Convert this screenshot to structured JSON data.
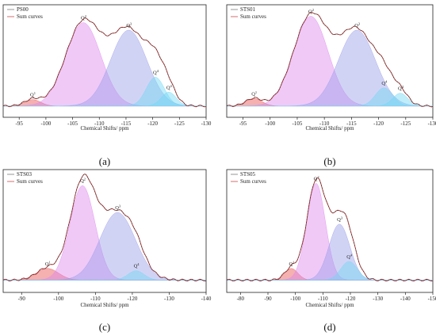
{
  "colors": {
    "q1": "#e8504f",
    "q2": "#dd88ee",
    "q3": "#9a9ee8",
    "q4": "#70d8f5",
    "sum": "#c0302e",
    "fit": "#3a3a3a"
  },
  "chart_data": [
    {
      "type": "area",
      "panel_label": "(a)",
      "xlabel": "Chemical Shifts/ ppm",
      "xlim": [
        -92,
        -130
      ],
      "ylim": [
        0,
        1
      ],
      "x_ticks": [
        -95,
        -100,
        -105,
        -110,
        -115,
        -120,
        -125,
        -130
      ],
      "legend": [
        "PS00",
        "Sum curves"
      ],
      "legend_position": "top-left",
      "baseline": 0.1,
      "series": [
        {
          "name": "Q1",
          "label": "Q",
          "sup": "1",
          "center": -97.5,
          "height": 0.06,
          "width": 1.5,
          "color": "q1"
        },
        {
          "name": "Q2",
          "label": "Q",
          "sup": "2",
          "center": -107.0,
          "height": 0.78,
          "width": 3.3,
          "color": "q2"
        },
        {
          "name": "Q3",
          "label": "Q",
          "sup": "3",
          "center": -115.5,
          "height": 0.71,
          "width": 3.4,
          "color": "q3"
        },
        {
          "name": "Q4a",
          "label": "Q",
          "sup": "4",
          "center": -120.5,
          "height": 0.27,
          "width": 1.7,
          "color": "q4"
        },
        {
          "name": "Q4b",
          "label": "Q",
          "sup": "4",
          "center": -123.0,
          "height": 0.13,
          "width": 1.4,
          "color": "q4"
        }
      ]
    },
    {
      "type": "area",
      "panel_label": "(b)",
      "xlabel": "Chemical Shifts/ ppm",
      "xlim": [
        -92,
        -130
      ],
      "ylim": [
        0,
        1
      ],
      "x_ticks": [
        -95,
        -100,
        -105,
        -110,
        -115,
        -120,
        -125,
        -130
      ],
      "legend": [
        "STS01",
        "Sum curves"
      ],
      "legend_position": "top-left",
      "baseline": 0.1,
      "series": [
        {
          "name": "Q1",
          "label": "Q",
          "sup": "1",
          "center": -97.0,
          "height": 0.07,
          "width": 1.5,
          "color": "q1"
        },
        {
          "name": "Q2",
          "label": "Q",
          "sup": "2",
          "center": -107.5,
          "height": 0.84,
          "width": 3.2,
          "color": "q2"
        },
        {
          "name": "Q3",
          "label": "Q",
          "sup": "3",
          "center": -116.0,
          "height": 0.71,
          "width": 3.4,
          "color": "q3"
        },
        {
          "name": "Q4a",
          "label": "Q",
          "sup": "4",
          "center": -121.0,
          "height": 0.17,
          "width": 1.6,
          "color": "q4"
        },
        {
          "name": "Q4b",
          "label": "Q",
          "sup": "4",
          "center": -124.0,
          "height": 0.12,
          "width": 1.4,
          "color": "q4"
        }
      ]
    },
    {
      "type": "area",
      "panel_label": "(c)",
      "xlabel": "Chemical Shifts/ ppm",
      "xlim": [
        -85,
        -140
      ],
      "ylim": [
        0,
        1
      ],
      "x_ticks": [
        -90,
        -100,
        -110,
        -120,
        -130,
        -140
      ],
      "legend": [
        "STS03",
        "Sum curves"
      ],
      "legend_position": "top-left",
      "baseline": 0.1,
      "series": [
        {
          "name": "Q1",
          "label": "Q",
          "sup": "1",
          "center": -97.0,
          "height": 0.1,
          "width": 3.0,
          "color": "q1"
        },
        {
          "name": "Q2",
          "label": "Q",
          "sup": "2",
          "center": -106.5,
          "height": 0.81,
          "width": 3.4,
          "color": "q2"
        },
        {
          "name": "Q3",
          "label": "Q",
          "sup": "3",
          "center": -116.0,
          "height": 0.58,
          "width": 4.8,
          "color": "q3"
        },
        {
          "name": "Q4",
          "label": "Q",
          "sup": "4",
          "center": -121.0,
          "height": 0.08,
          "width": 2.2,
          "color": "q4"
        }
      ]
    },
    {
      "type": "area",
      "panel_label": "(d)",
      "xlabel": "Chemical Shifts/ ppm",
      "xlim": [
        -75,
        -150
      ],
      "ylim": [
        0,
        1
      ],
      "x_ticks": [
        -80,
        -90,
        -100,
        -110,
        -120,
        -130,
        -140,
        -150
      ],
      "legend": [
        "STS05",
        "Sum curves"
      ],
      "legend_position": "top-left",
      "baseline": 0.1,
      "series": [
        {
          "name": "Q1",
          "label": "Q",
          "sup": "1",
          "center": -98.5,
          "height": 0.1,
          "width": 2.4,
          "color": "q1"
        },
        {
          "name": "Q2",
          "label": "Q",
          "sup": "2",
          "center": -107.5,
          "height": 0.83,
          "width": 3.4,
          "color": "q2"
        },
        {
          "name": "Q3",
          "label": "Q",
          "sup": "3",
          "center": -116.0,
          "height": 0.48,
          "width": 3.8,
          "color": "q3"
        },
        {
          "name": "Q4",
          "label": "Q",
          "sup": "4",
          "center": -119.5,
          "height": 0.16,
          "width": 3.0,
          "color": "q4"
        }
      ]
    }
  ]
}
